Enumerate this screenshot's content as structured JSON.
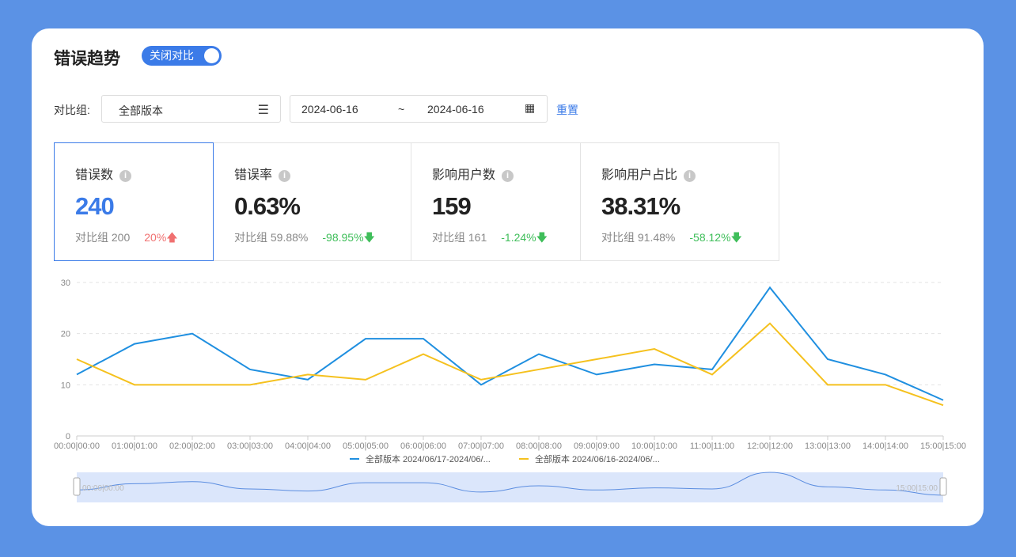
{
  "header": {
    "title": "错误趋势",
    "toggle_label": "关闭对比"
  },
  "filters": {
    "group_label": "对比组:",
    "group_value": "全部版本",
    "filter_icon": "filter-icon",
    "date_start": "2024-06-16",
    "date_sep": "~",
    "date_end": "2024-06-16",
    "calendar_icon": "calendar-icon",
    "reset_label": "重置"
  },
  "metrics": [
    {
      "name": "错误数",
      "value": "240",
      "compare": "对比组 200",
      "delta": "20%",
      "dir": "up"
    },
    {
      "name": "错误率",
      "value": "0.63%",
      "compare": "对比组 59.88%",
      "delta": "-98.95%",
      "dir": "down"
    },
    {
      "name": "影响用户数",
      "value": "159",
      "compare": "对比组 161",
      "delta": "-1.24%",
      "dir": "down"
    },
    {
      "name": "影响用户占比",
      "value": "38.31%",
      "compare": "对比组 91.48%",
      "delta": "-58.12%",
      "dir": "down"
    }
  ],
  "colors": {
    "accent": "#3b7be8",
    "up": "#f07070",
    "down": "#3fbe5a",
    "series1": "#1f8fe0",
    "series2": "#f5c11e"
  },
  "chart_data": {
    "type": "line",
    "categories": [
      "00:00|00:00",
      "01:00|01:00",
      "02:00|02:00",
      "03:00|03:00",
      "04:00|04:00",
      "05:00|05:00",
      "06:00|06:00",
      "07:00|07:00",
      "08:00|08:00",
      "09:00|09:00",
      "10:00|10:00",
      "11:00|11:00",
      "12:00|12:00",
      "13:00|13:00",
      "14:00|14:00",
      "15:00|15:00"
    ],
    "yticks": [
      0,
      10,
      20,
      30
    ],
    "ylim": [
      0,
      30
    ],
    "grid": true,
    "legend": "bottom",
    "series": [
      {
        "name": "全部版本 2024/06/17-2024/06/...",
        "color": "#1f8fe0",
        "values": [
          12,
          18,
          20,
          13,
          11,
          19,
          19,
          10,
          16,
          12,
          14,
          13,
          29,
          15,
          12,
          7
        ]
      },
      {
        "name": "全部版本 2024/06/16-2024/06/...",
        "color": "#f5c11e",
        "values": [
          15,
          10,
          10,
          10,
          12,
          11,
          16,
          11,
          13,
          15,
          17,
          12,
          22,
          10,
          10,
          6
        ]
      }
    ],
    "zoom": {
      "start_label": "00:00|00:00",
      "end_label": "15:00|15:00"
    }
  }
}
